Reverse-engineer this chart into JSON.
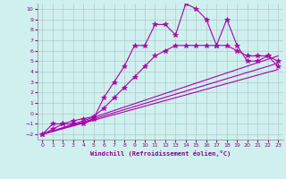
{
  "title": "",
  "xlabel": "Windchill (Refroidissement éolien,°C)",
  "ylabel": "",
  "bg_color": "#cff0ee",
  "grid_color": "#b0c8c8",
  "line_color": "#aa00aa",
  "xlim": [
    -0.5,
    23.5
  ],
  "ylim": [
    -2.5,
    10.5
  ],
  "xticks": [
    0,
    1,
    2,
    3,
    4,
    5,
    6,
    7,
    8,
    9,
    10,
    11,
    12,
    13,
    14,
    15,
    16,
    17,
    18,
    19,
    20,
    21,
    22,
    23
  ],
  "yticks": [
    -2,
    -1,
    0,
    1,
    2,
    3,
    4,
    5,
    6,
    7,
    8,
    9,
    10
  ],
  "series1_x": [
    0,
    1,
    2,
    3,
    4,
    5,
    6,
    7,
    8,
    9,
    10,
    11,
    12,
    13,
    14,
    15,
    16,
    17,
    18,
    19,
    20,
    21,
    22,
    23
  ],
  "series1_y": [
    -2,
    -1,
    -1,
    -1,
    -1,
    -0.5,
    1.5,
    3.0,
    4.5,
    6.5,
    6.5,
    8.5,
    8.5,
    7.5,
    10.5,
    10.0,
    9.0,
    6.5,
    9.0,
    6.5,
    5.0,
    5.0,
    5.5,
    4.5
  ],
  "series2_x": [
    0,
    1,
    2,
    3,
    4,
    5,
    6,
    7,
    8,
    9,
    10,
    11,
    12,
    13,
    14,
    15,
    16,
    17,
    18,
    19,
    20,
    21,
    22,
    23
  ],
  "series2_y": [
    -2,
    -1.5,
    -1.0,
    -0.7,
    -0.5,
    -0.3,
    0.5,
    1.5,
    2.5,
    3.5,
    4.5,
    5.5,
    6.0,
    6.5,
    6.5,
    6.5,
    6.5,
    6.5,
    6.5,
    6.0,
    5.5,
    5.5,
    5.5,
    5.0
  ],
  "series3_x": [
    0,
    23
  ],
  "series3_y": [
    -2,
    5.5
  ],
  "series4_x": [
    0,
    23
  ],
  "series4_y": [
    -2,
    4.8
  ],
  "series5_x": [
    0,
    23
  ],
  "series5_y": [
    -2,
    4.2
  ]
}
